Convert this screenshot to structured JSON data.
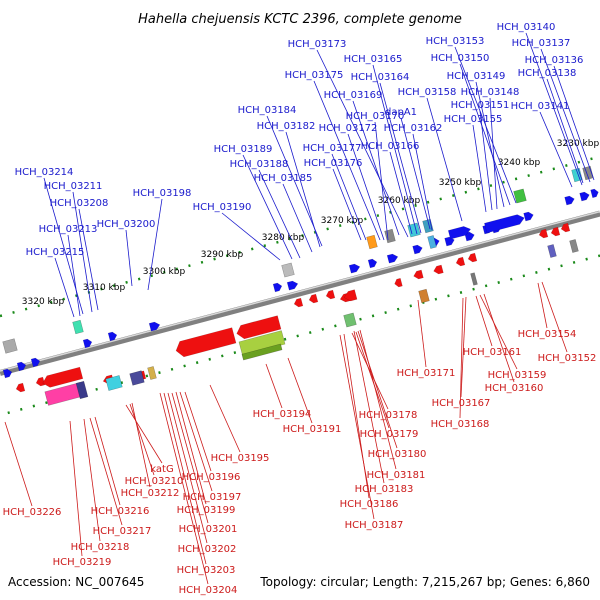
{
  "title": "Hahella chejuensis KCTC 2396, complete genome",
  "footer": {
    "accession": "Accession: NC_007645",
    "summary": "Topology: circular; Length: 7,215,267 bp; Genes: 6,860"
  },
  "colors": {
    "forward_labels": "#1a1acc",
    "reverse_labels": "#cc1a1a",
    "backbone": "#808080",
    "tick_marks": "#1a8a1a",
    "forward_genes": "#1010ee",
    "reverse_genes": "#ee1010"
  },
  "scale_labels": [
    "3230 kbp",
    "3240 kbp",
    "3250 kbp",
    "3260 kbp",
    "3270 kbp",
    "3280 kbp",
    "3290 kbp",
    "3300 kbp",
    "3310 kbp",
    "3320 kbp"
  ],
  "forward_genes": [
    "HCH_03140",
    "HCH_03137",
    "HCH_03136",
    "HCH_03138",
    "HCH_03141",
    "HCH_03153",
    "HCH_03150",
    "HCH_03149",
    "HCH_03148",
    "HCH_03151",
    "HCH_03155",
    "HCH_03173",
    "HCH_03165",
    "HCH_03164",
    "HCH_03175",
    "HCH_03169",
    "dapA1",
    "HCH_03158",
    "HCH_03170",
    "HCH_03162",
    "HCH_03172",
    "HCH_03184",
    "HCH_03182",
    "HCH_03177",
    "HCH_03166",
    "HCH_03189",
    "HCH_03176",
    "HCH_03188",
    "HCH_03185",
    "HCH_03190",
    "HCH_03198",
    "HCH_03200",
    "HCH_03214",
    "HCH_03211",
    "HCH_03208",
    "HCH_03213",
    "HCH_03215"
  ],
  "reverse_genes": [
    "HCH_03154",
    "HCH_03152",
    "HCH_03161",
    "HCH_03159",
    "HCH_03160",
    "HCH_03171",
    "HCH_03167",
    "HCH_03168",
    "HCH_03194",
    "HCH_03191",
    "HCH_03178",
    "HCH_03179",
    "HCH_03180",
    "HCH_03181",
    "HCH_03183",
    "HCH_03186",
    "HCH_03187",
    "HCH_03195",
    "HCH_03196",
    "HCH_03197",
    "katG",
    "HCH_03210",
    "HCH_03212",
    "HCH_03199",
    "HCH_03201",
    "HCH_03202",
    "HCH_03203",
    "HCH_03204",
    "HCH_03216",
    "HCH_03217",
    "HCH_03218",
    "HCH_03219",
    "HCH_03226"
  ]
}
